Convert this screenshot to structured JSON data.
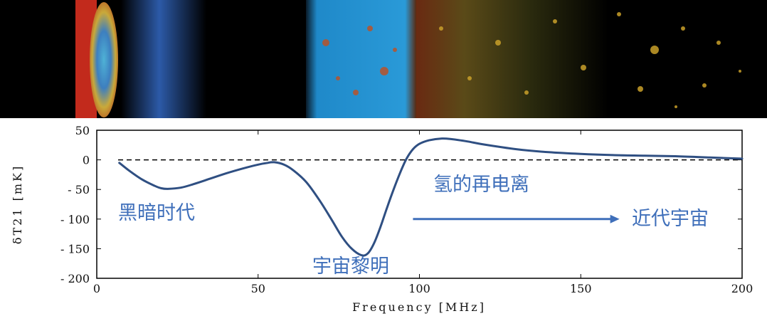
{
  "chart_data": {
    "type": "line",
    "xlabel": "Frequency [MHz]",
    "ylabel": "δT21 [mK]",
    "xlim": [
      0,
      200
    ],
    "ylim": [
      -200,
      50
    ],
    "x_ticks": [
      "0",
      "50",
      "100",
      "150",
      "200"
    ],
    "y_ticks": [
      "50",
      "0",
      "- 50",
      "- 100",
      "- 150",
      "- 200"
    ],
    "reference_line": {
      "y": 0,
      "style": "dashed"
    },
    "series": [
      {
        "color": "#2f4f82",
        "points": [
          [
            7,
            -5
          ],
          [
            10,
            -18
          ],
          [
            14,
            -33
          ],
          [
            18,
            -44
          ],
          [
            20,
            -48
          ],
          [
            22,
            -49
          ],
          [
            26,
            -47
          ],
          [
            30,
            -41
          ],
          [
            35,
            -32
          ],
          [
            40,
            -23
          ],
          [
            45,
            -15
          ],
          [
            50,
            -8
          ],
          [
            53,
            -5
          ],
          [
            55,
            -4
          ],
          [
            58,
            -8
          ],
          [
            61,
            -18
          ],
          [
            65,
            -38
          ],
          [
            69,
            -68
          ],
          [
            73,
            -103
          ],
          [
            76,
            -130
          ],
          [
            79,
            -150
          ],
          [
            82,
            -161
          ],
          [
            84,
            -158
          ],
          [
            86,
            -140
          ],
          [
            88,
            -112
          ],
          [
            90,
            -80
          ],
          [
            92,
            -50
          ],
          [
            94,
            -22
          ],
          [
            96,
            2
          ],
          [
            98,
            18
          ],
          [
            100,
            27
          ],
          [
            103,
            33
          ],
          [
            107,
            36
          ],
          [
            110,
            35
          ],
          [
            115,
            31
          ],
          [
            120,
            26
          ],
          [
            130,
            18
          ],
          [
            140,
            13
          ],
          [
            150,
            10
          ],
          [
            160,
            8
          ],
          [
            170,
            7
          ],
          [
            180,
            6
          ],
          [
            190,
            4
          ],
          [
            200,
            2
          ]
        ]
      }
    ],
    "annotations": [
      "黑暗时代",
      "宇宙黎明",
      "氢的再电离",
      "近代宇宙"
    ],
    "arrow": {
      "from": [
        98,
        -100
      ],
      "to": [
        162,
        -100
      ],
      "color": "#3f6fba"
    }
  }
}
